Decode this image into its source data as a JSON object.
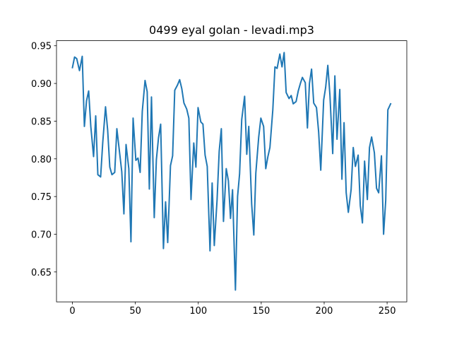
{
  "chart_data": {
    "type": "line",
    "title": "0499 eyal golan - levadi.mp3",
    "x": [
      0,
      1.7,
      3.4,
      5.6,
      7.8,
      9.5,
      11.2,
      12.9,
      14.6,
      16.8,
      18.5,
      20.2,
      22.4,
      24.1,
      26.3,
      28.0,
      29.7,
      31.4,
      33.6,
      35.3,
      37.0,
      39.2,
      40.9,
      42.6,
      44.8,
      46.5,
      48.2,
      50.4,
      52.1,
      53.8,
      55.5,
      57.7,
      59.4,
      61.1,
      62.8,
      65.0,
      66.7,
      68.4,
      70.1,
      72.3,
      74.0,
      75.7,
      77.9,
      79.6,
      81.3,
      83.5,
      85.2,
      86.9,
      88.6,
      90.8,
      92.5,
      94.2,
      96.4,
      98.1,
      99.8,
      102.0,
      103.7,
      105.4,
      107.1,
      109.3,
      111.0,
      112.7,
      114.9,
      116.6,
      118.3,
      120.0,
      122.2,
      123.9,
      125.6,
      127.2,
      129.5,
      131.2,
      132.8,
      134.5,
      136.8,
      138.5,
      140.1,
      142.4,
      144.1,
      145.7,
      148.0,
      149.7,
      151.9,
      153.6,
      155.3,
      156.9,
      159.2,
      160.9,
      162.6,
      164.8,
      166.5,
      168.2,
      169.8,
      172.1,
      173.8,
      175.4,
      177.7,
      179.4,
      181.1,
      182.7,
      185.0,
      186.7,
      188.3,
      190.0,
      191.7,
      193.9,
      195.6,
      197.3,
      199.6,
      201.2,
      202.9,
      204.6,
      206.8,
      208.5,
      210.2,
      212.4,
      214.1,
      215.8,
      217.5,
      219.2,
      221.4,
      223.1,
      224.8,
      227.0,
      228.7,
      230.4,
      232.1,
      234.3,
      236.0,
      237.7,
      239.9,
      241.6,
      243.3,
      245.5,
      247.2,
      248.9,
      250.6,
      252.8
    ],
    "series": [
      {
        "color": "#1f77b4",
        "values": [
          0.921,
          0.935,
          0.933,
          0.917,
          0.936,
          0.843,
          0.877,
          0.89,
          0.843,
          0.803,
          0.857,
          0.779,
          0.776,
          0.822,
          0.869,
          0.838,
          0.789,
          0.779,
          0.782,
          0.84,
          0.815,
          0.783,
          0.727,
          0.819,
          0.787,
          0.69,
          0.854,
          0.798,
          0.801,
          0.782,
          0.863,
          0.904,
          0.889,
          0.76,
          0.882,
          0.722,
          0.799,
          0.828,
          0.846,
          0.681,
          0.743,
          0.689,
          0.791,
          0.804,
          0.891,
          0.898,
          0.905,
          0.893,
          0.874,
          0.866,
          0.854,
          0.746,
          0.821,
          0.789,
          0.868,
          0.849,
          0.846,
          0.805,
          0.79,
          0.678,
          0.768,
          0.685,
          0.745,
          0.81,
          0.84,
          0.717,
          0.787,
          0.771,
          0.721,
          0.759,
          0.626,
          0.75,
          0.78,
          0.852,
          0.883,
          0.806,
          0.843,
          0.74,
          0.699,
          0.781,
          0.829,
          0.854,
          0.843,
          0.787,
          0.803,
          0.815,
          0.865,
          0.922,
          0.92,
          0.939,
          0.922,
          0.941,
          0.888,
          0.88,
          0.884,
          0.873,
          0.876,
          0.89,
          0.9,
          0.908,
          0.901,
          0.841,
          0.9,
          0.919,
          0.874,
          0.868,
          0.836,
          0.785,
          0.878,
          0.895,
          0.924,
          0.884,
          0.807,
          0.91,
          0.826,
          0.892,
          0.773,
          0.848,
          0.755,
          0.729,
          0.759,
          0.815,
          0.79,
          0.805,
          0.738,
          0.715,
          0.797,
          0.746,
          0.815,
          0.829,
          0.808,
          0.761,
          0.755,
          0.804,
          0.7,
          0.745,
          0.865,
          0.873
        ]
      }
    ],
    "xlim": [
      -12.65,
      265.65
    ],
    "ylim": [
      0.6103,
      0.9567
    ],
    "xticks": [
      0,
      50,
      100,
      150,
      200,
      250
    ],
    "yticks": [
      0.65,
      {
        "value": 0.7,
        "label": "0.70"
      },
      0.75,
      {
        "value": 0.8,
        "label": "0.80"
      },
      0.85,
      {
        "value": 0.9,
        "label": "0.90"
      },
      0.95
    ]
  }
}
